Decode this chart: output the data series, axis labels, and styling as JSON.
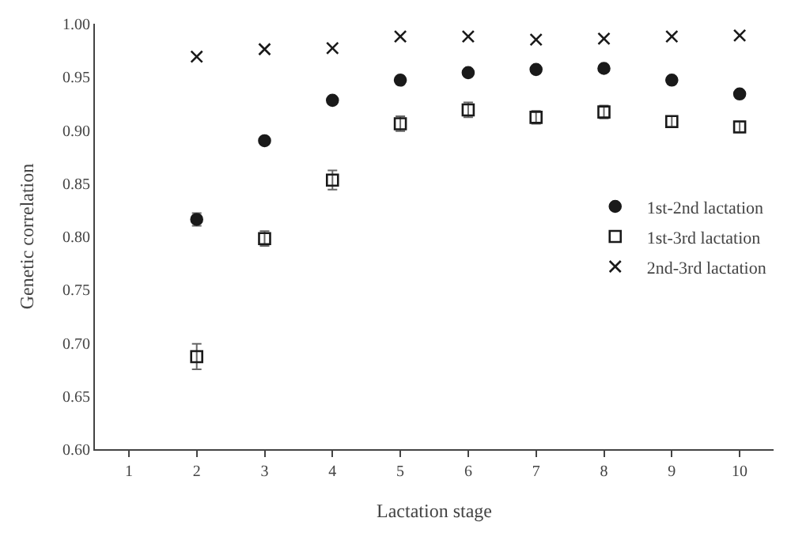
{
  "chart_data": {
    "type": "scatter",
    "xlabel": "Lactation stage",
    "ylabel": "Genetic correlation",
    "categories": [
      "1",
      "2",
      "3",
      "4",
      "5",
      "6",
      "7",
      "8",
      "9",
      "10"
    ],
    "series": [
      {
        "name": "1st-2nd lactation",
        "color": "#1a1a1a",
        "marker": "circle",
        "values": [
          null,
          0.816,
          0.89,
          0.928,
          0.947,
          0.954,
          0.957,
          0.958,
          0.947,
          0.934
        ],
        "errors": [
          null,
          0.006,
          null,
          null,
          null,
          null,
          null,
          null,
          null,
          null
        ]
      },
      {
        "name": "1st-3rd lactation",
        "color": "#1a1a1a",
        "marker": "square",
        "values": [
          null,
          0.687,
          0.798,
          0.853,
          0.906,
          0.919,
          0.912,
          0.917,
          0.908,
          0.903
        ],
        "errors": [
          null,
          0.012,
          0.007,
          0.009,
          0.007,
          0.007,
          0.006,
          0.006,
          0.005,
          0.005
        ]
      },
      {
        "name": "2nd-3rd lactation",
        "color": "#1a1a1a",
        "marker": "cross",
        "values": [
          null,
          0.969,
          0.976,
          0.977,
          0.988,
          0.988,
          0.985,
          0.986,
          0.988,
          0.989
        ]
      }
    ],
    "ylim": [
      0.6,
      1.0
    ],
    "yticks": [
      {
        "value": 0.6,
        "label": "0.60"
      },
      {
        "value": 0.65,
        "label": "0.65"
      },
      {
        "value": 0.7,
        "label": "0.70"
      },
      {
        "value": 0.75,
        "label": "0.75"
      },
      {
        "value": 0.8,
        "label": "0.80"
      },
      {
        "value": 0.85,
        "label": "0.85"
      },
      {
        "value": 0.9,
        "label": "0.90"
      },
      {
        "value": 0.95,
        "label": "0.95"
      },
      {
        "value": 1.0,
        "label": "1.00"
      }
    ],
    "legend": "right"
  }
}
